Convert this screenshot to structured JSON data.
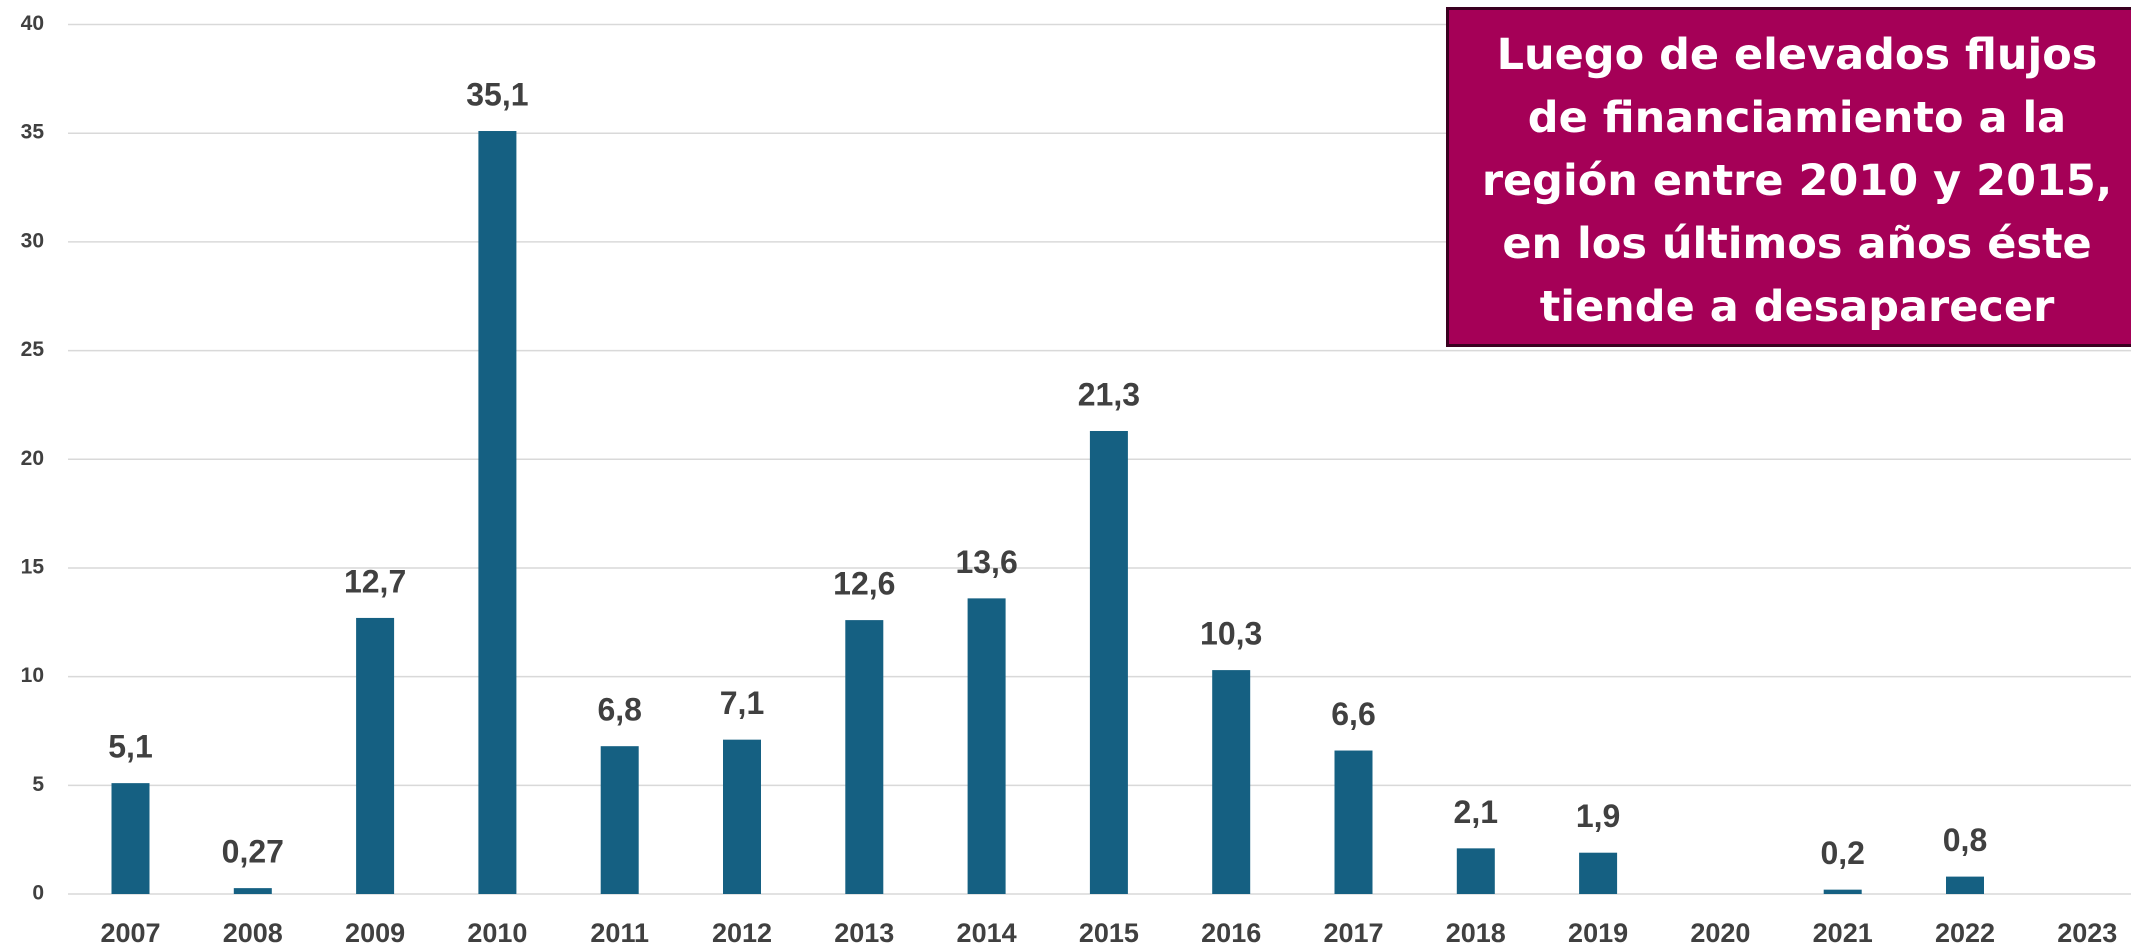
{
  "chart_data": {
    "type": "bar",
    "categories": [
      "2007",
      "2008",
      "2009",
      "2010",
      "2011",
      "2012",
      "2013",
      "2014",
      "2015",
      "2016",
      "2017",
      "2018",
      "2019",
      "2020",
      "2021",
      "2022",
      "2023"
    ],
    "values": [
      5.1,
      0.27,
      12.7,
      35.1,
      6.8,
      7.1,
      12.6,
      13.6,
      21.3,
      10.3,
      6.6,
      2.1,
      1.9,
      null,
      0.2,
      0.8,
      null
    ],
    "value_labels": [
      "5,1",
      "0,27",
      "12,7",
      "35,1",
      "6,8",
      "7,1",
      "12,6",
      "13,6",
      "21,3",
      "10,3",
      "6,6",
      "2,1",
      "1,9",
      null,
      "0,2",
      "0,8",
      null
    ],
    "color": "#156082",
    "ylim": [
      0,
      40
    ],
    "yticks": [
      0,
      5,
      10,
      15,
      20,
      25,
      30,
      35,
      40
    ],
    "grid": true,
    "annotation": "Luego de elevados flujos de financiamiento a la región entre 2010 y 2015, en los últimos años éste tiende a desaparecer"
  }
}
